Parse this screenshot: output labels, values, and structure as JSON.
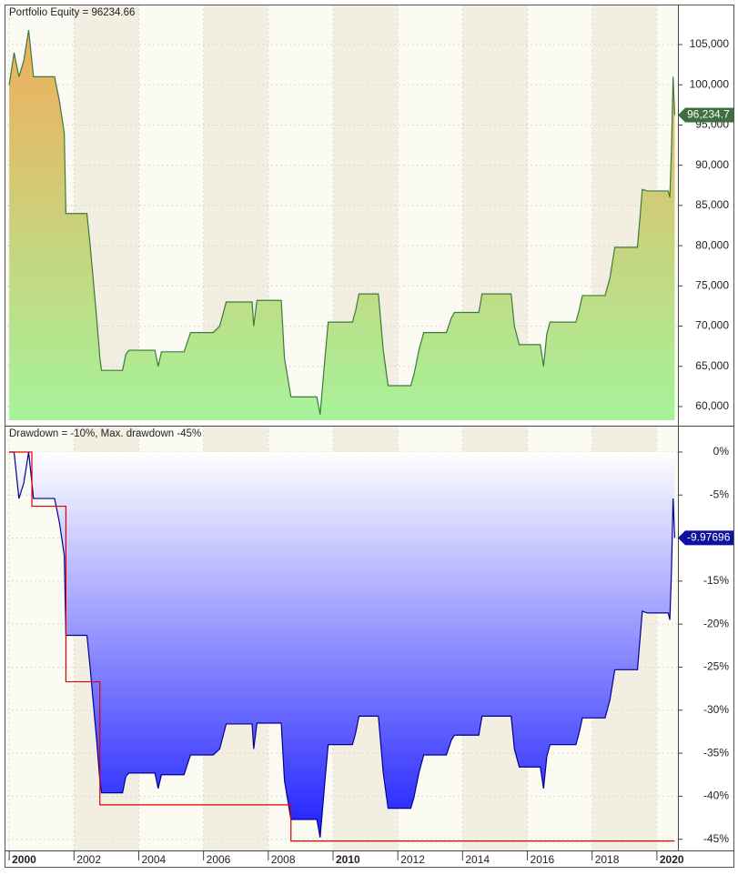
{
  "chart_data": [
    {
      "type": "area",
      "title": "Portfolio Equity = 96234.66",
      "xlim": [
        1999.94,
        2020.65
      ],
      "xticks": [
        2000,
        2002,
        2004,
        2006,
        2008,
        2010,
        2012,
        2014,
        2016,
        2018,
        2020
      ],
      "ylim": [
        58300,
        109750
      ],
      "yticks": [
        {
          "value": 60000,
          "label": "60,000"
        },
        {
          "value": 65000,
          "label": "65,000"
        },
        {
          "value": 70000,
          "label": "70,000"
        },
        {
          "value": 75000,
          "label": "75,000"
        },
        {
          "value": 80000,
          "label": "80,000"
        },
        {
          "value": 85000,
          "label": "85,000"
        },
        {
          "value": 90000,
          "label": "90,000"
        },
        {
          "value": 95000,
          "label": "95,000"
        },
        {
          "value": 100000,
          "label": "100,000"
        },
        {
          "value": 105000,
          "label": "105,000"
        }
      ],
      "grid": true,
      "gradient": [
        "#f0ae5c",
        "#a6f39a"
      ],
      "marker_color": "#3f6e3f",
      "current": {
        "value": 96234.66,
        "label": "96,234.7"
      },
      "series": [
        {
          "color": "#3c7a3c",
          "x": [
            2000.0,
            2000.15,
            2000.3,
            2000.45,
            2000.6,
            2000.75,
            2001.4,
            2001.45,
            2001.55,
            2001.7,
            2001.75,
            2002.4,
            2002.5,
            2002.7,
            2002.8,
            2002.85,
            2003.5,
            2003.6,
            2003.7,
            2004.5,
            2004.6,
            2004.7,
            2005.4,
            2005.5,
            2005.6,
            2006.3,
            2006.5,
            2006.7,
            2007.5,
            2007.55,
            2007.65,
            2008.4,
            2008.5,
            2008.7,
            2009.5,
            2009.6,
            2009.75,
            2009.85,
            2010.6,
            2010.7,
            2010.8,
            2011.4,
            2011.55,
            2011.7,
            2012.4,
            2012.5,
            2012.65,
            2012.8,
            2013.5,
            2013.65,
            2013.75,
            2014.5,
            2014.6,
            2014.75,
            2015.5,
            2015.6,
            2015.75,
            2016.4,
            2016.5,
            2016.6,
            2016.7,
            2017.5,
            2017.6,
            2017.7,
            2018.4,
            2018.55,
            2018.7,
            2019.4,
            2019.55,
            2019.7,
            2020.35,
            2020.4,
            2020.45,
            2020.5,
            2020.55
          ],
          "values": [
            100000,
            104000,
            101000,
            103000,
            106800,
            101000,
            101000,
            100000,
            98000,
            94000,
            84000,
            84000,
            80000,
            71000,
            66000,
            64500,
            64500,
            66500,
            67000,
            67000,
            65000,
            66800,
            66800,
            68000,
            69200,
            69200,
            70000,
            73000,
            73000,
            70000,
            73200,
            73200,
            66000,
            61200,
            61200,
            59000,
            66000,
            70500,
            70500,
            72000,
            74000,
            74000,
            67000,
            62600,
            62600,
            64000,
            67000,
            69200,
            69200,
            71000,
            71700,
            71700,
            74000,
            74000,
            74000,
            70000,
            67700,
            67700,
            65000,
            69000,
            70500,
            70500,
            72000,
            73800,
            73800,
            76000,
            79800,
            79800,
            87000,
            86800,
            86800,
            86000,
            92000,
            101000,
            96234.66
          ]
        }
      ]
    },
    {
      "type": "area",
      "title": "Drawdown = -10%, Max. drawdown -45%",
      "xlim": [
        1999.94,
        2020.65
      ],
      "xticks": [
        2000,
        2002,
        2004,
        2006,
        2008,
        2010,
        2012,
        2014,
        2016,
        2018,
        2020
      ],
      "ylim": [
        -46.3,
        2.85
      ],
      "yticks": [
        {
          "value": 0,
          "label": "0%"
        },
        {
          "value": -5,
          "label": "-5%"
        },
        {
          "value": -10,
          "label": "-10%"
        },
        {
          "value": -15,
          "label": "-15%"
        },
        {
          "value": -20,
          "label": "-20%"
        },
        {
          "value": -25,
          "label": "-25%"
        },
        {
          "value": -30,
          "label": "-30%"
        },
        {
          "value": -35,
          "label": "-35%"
        },
        {
          "value": -40,
          "label": "-40%"
        },
        {
          "value": -45,
          "label": "-45%"
        }
      ],
      "grid": true,
      "gradient": [
        "#ffffff",
        "#1f1fff"
      ],
      "marker_color": "#1010a0",
      "current": {
        "value": -9.97696,
        "label": "-9.97696"
      },
      "series": [
        {
          "color": "#000090",
          "x": [
            2000.0,
            2000.15,
            2000.3,
            2000.45,
            2000.6,
            2000.75,
            2001.4,
            2001.45,
            2001.55,
            2001.7,
            2001.75,
            2002.4,
            2002.5,
            2002.7,
            2002.8,
            2002.85,
            2003.5,
            2003.6,
            2003.7,
            2004.5,
            2004.6,
            2004.7,
            2005.4,
            2005.5,
            2005.6,
            2006.3,
            2006.5,
            2006.7,
            2007.5,
            2007.55,
            2007.65,
            2008.4,
            2008.5,
            2008.7,
            2009.5,
            2009.6,
            2009.75,
            2009.85,
            2010.6,
            2010.7,
            2010.8,
            2011.4,
            2011.55,
            2011.7,
            2012.4,
            2012.5,
            2012.65,
            2012.8,
            2013.5,
            2013.65,
            2013.75,
            2014.5,
            2014.6,
            2014.75,
            2015.5,
            2015.6,
            2015.75,
            2016.4,
            2016.5,
            2016.6,
            2016.7,
            2017.5,
            2017.6,
            2017.7,
            2018.4,
            2018.55,
            2018.7,
            2019.4,
            2019.55,
            2019.7,
            2020.35,
            2020.4,
            2020.45,
            2020.5,
            2020.55
          ],
          "values": [
            0,
            0,
            -5.4,
            -3.6,
            0,
            -5.4,
            -5.4,
            -6.3,
            -8.2,
            -12,
            -21.3,
            -21.3,
            -25.1,
            -33.5,
            -38.2,
            -39.6,
            -39.6,
            -37.7,
            -37.3,
            -37.3,
            -39.1,
            -37.5,
            -37.5,
            -36.3,
            -35.2,
            -35.2,
            -34.5,
            -31.6,
            -31.6,
            -34.5,
            -31.5,
            -31.5,
            -38.2,
            -42.7,
            -42.7,
            -44.8,
            -38.2,
            -34,
            -34,
            -32.6,
            -30.7,
            -30.7,
            -37.3,
            -41.4,
            -41.4,
            -40.1,
            -37.3,
            -35.2,
            -35.2,
            -33.5,
            -32.9,
            -32.9,
            -30.7,
            -30.7,
            -30.7,
            -34.5,
            -36.6,
            -36.6,
            -39.1,
            -35.4,
            -34,
            -34,
            -32.6,
            -30.9,
            -30.9,
            -28.8,
            -25.3,
            -25.3,
            -18.5,
            -18.7,
            -18.7,
            -19.5,
            -13.9,
            -5.4,
            -9.97696
          ]
        },
        {
          "color": "#e00000",
          "fill": false,
          "x": [
            2000.0,
            2000.7,
            2000.7,
            2001.75,
            2001.75,
            2002.8,
            2002.8,
            2008.7,
            2008.7,
            2020.55
          ],
          "values": [
            0,
            0,
            -6.3,
            -6.3,
            -26.7,
            -26.7,
            -41,
            -41,
            -45.2,
            -45.2
          ]
        }
      ]
    }
  ]
}
